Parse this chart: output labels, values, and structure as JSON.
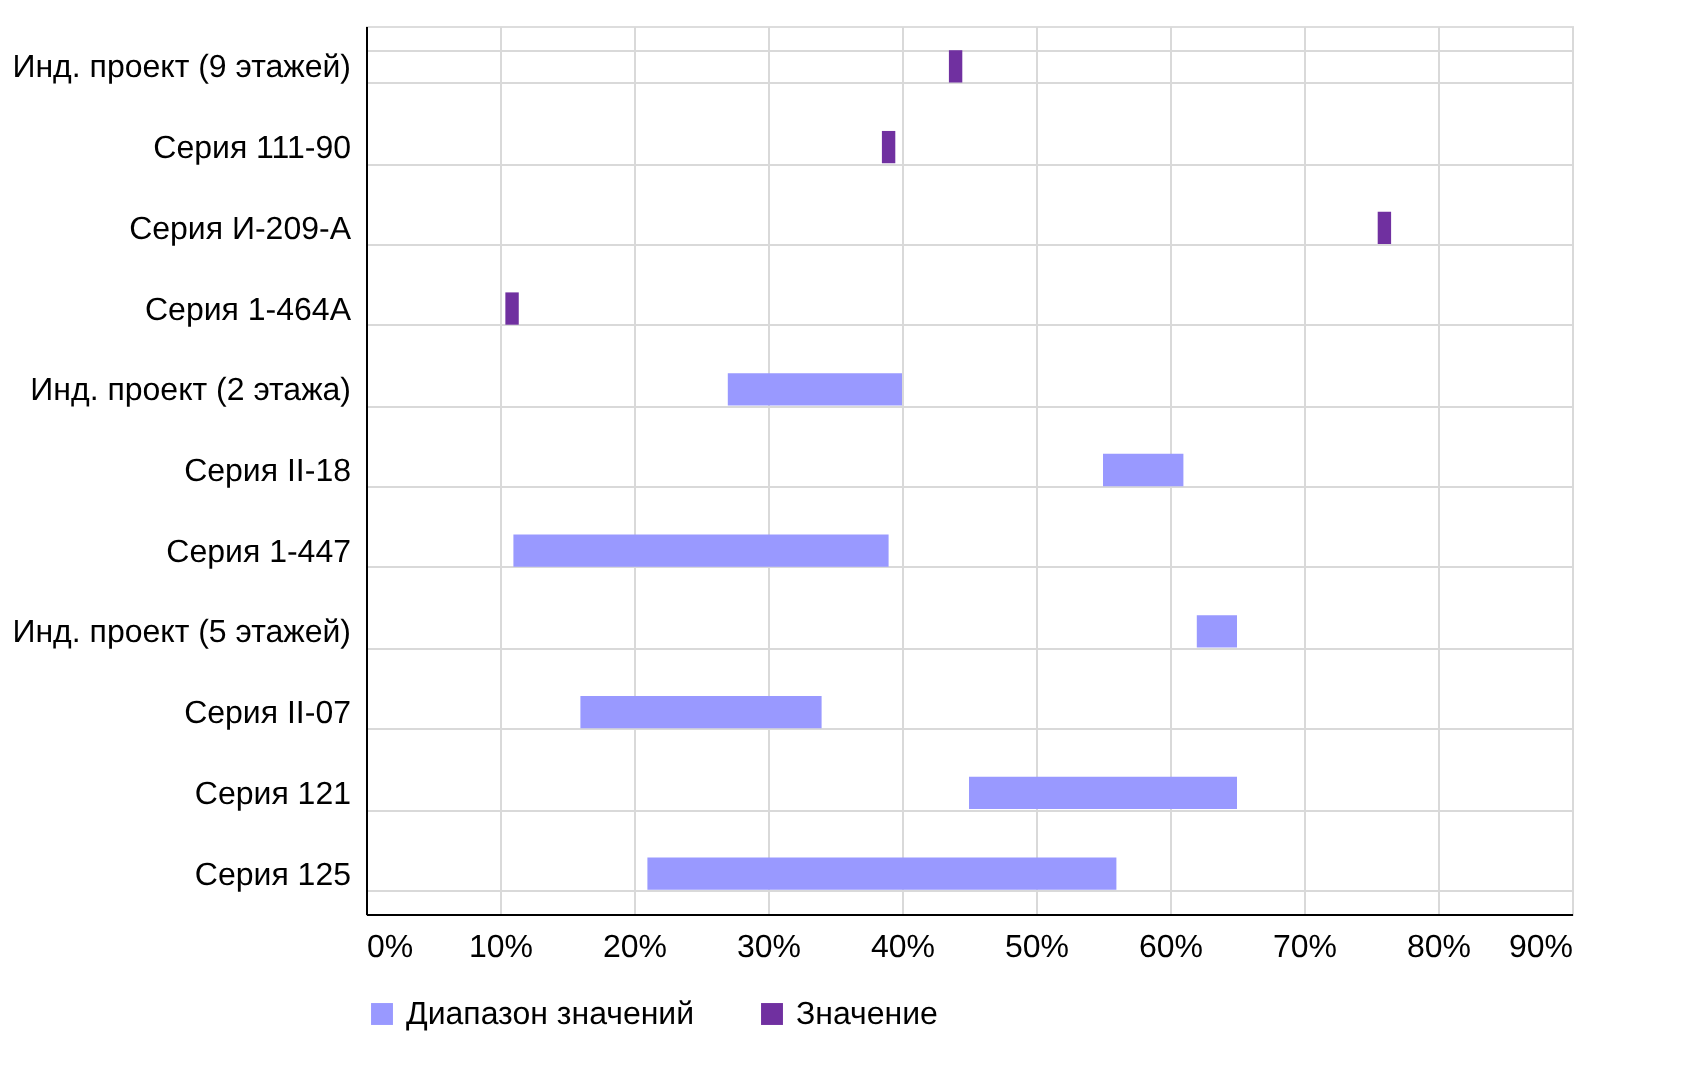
{
  "chart_data": {
    "type": "bar",
    "orientation": "horizontal",
    "categories": [
      "Инд. проект (9 этажей)",
      "Серия 111-90",
      "Серия И-209-А",
      "Серия 1-464А",
      "Инд. проект (2 этажа)",
      "Серия II-18",
      "Серия 1-447",
      "Инд. проект (5 этажей)",
      "Серия II-07",
      "Серия 121",
      "Серия 125"
    ],
    "series": [
      {
        "name": "Диапазон значений",
        "color": "#9999ff",
        "base": [
          null,
          null,
          null,
          null,
          27,
          55,
          11,
          62,
          16,
          45,
          21
        ],
        "values": [
          null,
          null,
          null,
          null,
          13,
          6,
          28,
          3,
          18,
          20,
          35
        ]
      },
      {
        "name": "Значение",
        "color": "#7030a0",
        "base": [
          43.5,
          38.5,
          75.5,
          10.4,
          null,
          null,
          null,
          null,
          null,
          null,
          null
        ],
        "values": [
          1,
          1,
          1,
          1,
          null,
          null,
          null,
          null,
          null,
          null,
          null
        ]
      }
    ],
    "xlim": [
      0,
      90
    ],
    "xticks": [
      {
        "value": 0,
        "label": "0%"
      },
      {
        "value": 10,
        "label": "10%"
      },
      {
        "value": 20,
        "label": "20%"
      },
      {
        "value": 30,
        "label": "30%"
      },
      {
        "value": 40,
        "label": "40%"
      },
      {
        "value": 50,
        "label": "50%"
      },
      {
        "value": 60,
        "label": "60%"
      },
      {
        "value": 70,
        "label": "70%"
      },
      {
        "value": 80,
        "label": "80%"
      },
      {
        "value": 90,
        "label": "90%"
      }
    ],
    "grid": true,
    "legend": "bottom"
  }
}
